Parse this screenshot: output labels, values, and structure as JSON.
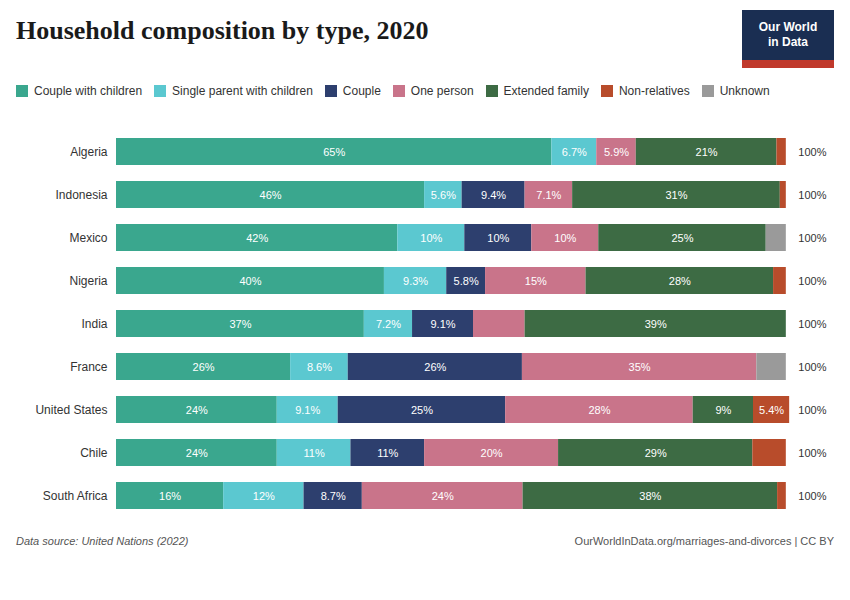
{
  "chart_data": {
    "type": "bar",
    "orientation": "horizontal",
    "stacked": true,
    "title": "Household composition by type, 2020",
    "categories": [
      "Algeria",
      "Indonesia",
      "Mexico",
      "Nigeria",
      "India",
      "France",
      "United States",
      "Chile",
      "South Africa"
    ],
    "series": [
      {
        "name": "Couple with children",
        "color": "#3aa78e",
        "values": [
          65.0,
          46.0,
          42.0,
          40.0,
          37.0,
          26.0,
          24.0,
          24.0,
          16.0
        ],
        "value_labels": [
          "65%",
          "46%",
          "42%",
          "40%",
          "37%",
          "26%",
          "24%",
          "24%",
          "16%"
        ]
      },
      {
        "name": "Single parent with children",
        "color": "#5bc8d0",
        "values": [
          6.7,
          5.6,
          10.0,
          9.3,
          7.2,
          8.6,
          9.1,
          11.0,
          12.0
        ],
        "value_labels": [
          "6.7%",
          "5.6%",
          "10%",
          "9.3%",
          "7.2%",
          "8.6%",
          "9.1%",
          "11%",
          "12%"
        ]
      },
      {
        "name": "Couple",
        "color": "#2d3f6e",
        "values": [
          0.0,
          9.4,
          10.0,
          5.8,
          9.1,
          26.0,
          25.0,
          11.0,
          8.7
        ],
        "value_labels": [
          null,
          "9.4%",
          "10%",
          "5.8%",
          "9.1%",
          "26%",
          "25%",
          "11%",
          "8.7%"
        ]
      },
      {
        "name": "One person",
        "color": "#c9748a",
        "values": [
          5.9,
          7.1,
          10.0,
          15.0,
          7.7,
          35.0,
          28.0,
          20.0,
          24.0
        ],
        "value_labels": [
          "5.9%",
          "7.1%",
          "10%",
          "15%",
          null,
          "35%",
          "28%",
          "20%",
          "24%"
        ]
      },
      {
        "name": "Extended family",
        "color": "#3d6b44",
        "values": [
          21.0,
          31.0,
          25.0,
          28.0,
          39.0,
          0.0,
          9.0,
          29.0,
          38.0
        ],
        "value_labels": [
          "21%",
          "31%",
          "25%",
          "28%",
          "39%",
          null,
          "9%",
          "29%",
          "38%"
        ]
      },
      {
        "name": "Non-relatives",
        "color": "#b84c2b",
        "values": [
          1.4,
          0.9,
          0.0,
          1.9,
          0.0,
          0.0,
          5.4,
          5.0,
          1.3
        ],
        "value_labels": [
          null,
          null,
          null,
          null,
          null,
          null,
          "5.4%",
          null,
          null
        ]
      },
      {
        "name": "Unknown",
        "color": "#9a9a9a",
        "values": [
          0.0,
          0.0,
          3.0,
          0.0,
          0.0,
          4.4,
          0.0,
          0.0,
          0.0
        ],
        "value_labels": [
          null,
          null,
          null,
          null,
          null,
          null,
          null,
          null,
          null
        ]
      }
    ],
    "total_labels": [
      "100%",
      "100%",
      "100%",
      "100%",
      "100%",
      "100%",
      "100%",
      "100%",
      "100%"
    ],
    "data_labels": true,
    "xlim": [
      0,
      106
    ],
    "tick_labels": "y",
    "grid": false,
    "legend": "top",
    "source": "Data source: United Nations (2022)",
    "credit": "OurWorldInData.org/marriages-and-divorces | CC BY",
    "logo": {
      "lines": [
        "Our World",
        "in Data"
      ],
      "color": "#1a2e52",
      "strip_color": "#c0392b"
    }
  }
}
